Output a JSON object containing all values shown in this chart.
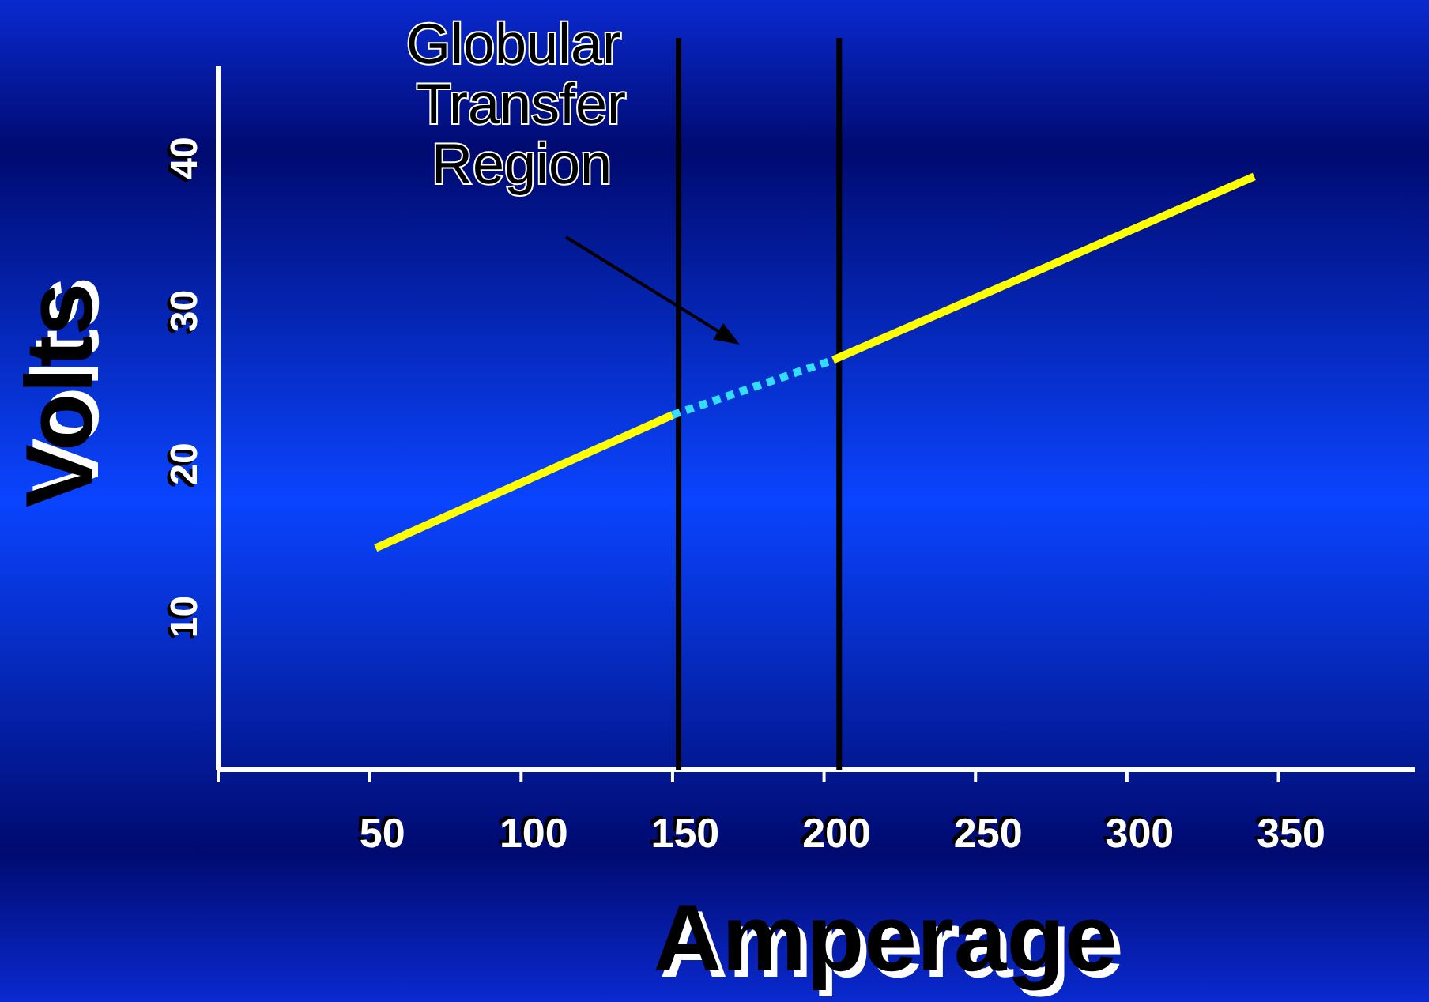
{
  "chart_data": {
    "type": "line",
    "xlabel": "Amperage",
    "ylabel": "Volts",
    "xlim": [
      0,
      395
    ],
    "xticks": [
      {
        "value": 0,
        "label": null
      },
      50,
      100,
      150,
      200,
      250,
      300,
      350
    ],
    "ylim": [
      0,
      46
    ],
    "yticks": [
      10,
      20,
      30,
      40
    ],
    "series": [
      {
        "color": "#ffff00",
        "x": [
          52,
          150
        ],
        "values": [
          14.5,
          23.2
        ],
        "line_style": "solid"
      },
      {
        "color": "#33ddff",
        "x": [
          150,
          203
        ],
        "values": [
          23.2,
          26.8
        ],
        "line_style": "dotted"
      },
      {
        "color": "#ffff00",
        "x": [
          203,
          342
        ],
        "values": [
          26.8,
          38.8
        ],
        "line_style": "solid"
      }
    ],
    "ref_lines": [
      {
        "axis": "x",
        "value": 152,
        "color": "#000000"
      },
      {
        "axis": "x",
        "value": 205,
        "color": "#000000"
      }
    ],
    "annotations": [
      "Globular Transfer Region"
    ],
    "grid": false,
    "marker": "none"
  }
}
